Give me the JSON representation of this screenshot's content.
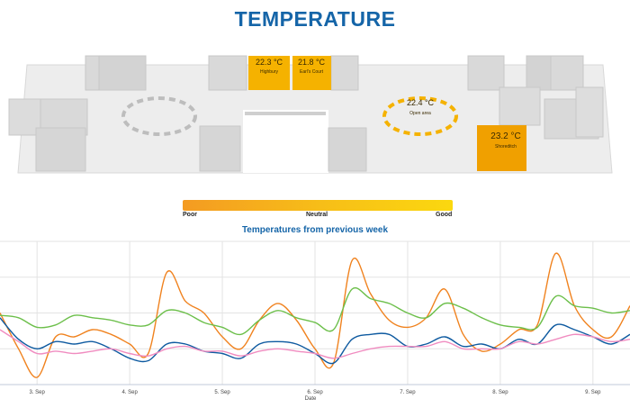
{
  "page": {
    "title": "TEMPERATURE"
  },
  "rooms": [
    {
      "temp": "22.3 °C",
      "name": "Highbury",
      "color": "#f5b200"
    },
    {
      "temp": "21.8 °C",
      "name": "Earl's Court",
      "color": "#f5b200"
    },
    {
      "temp": "22.4 °C",
      "name": "Open area",
      "color": "#f5b200"
    },
    {
      "temp": "23.2 °C",
      "name": "Shoreditch",
      "color": "#f0a000"
    }
  ],
  "legend": {
    "poor": "Poor",
    "neutral": "Neutral",
    "good": "Good"
  },
  "chart_data": {
    "type": "line",
    "title": "Temperatures from previous week",
    "xlabel": "Date",
    "ylabel": "",
    "grid": true,
    "categories": [
      "3. Sep",
      "4. Sep",
      "5. Sep",
      "6. Sep",
      "7. Sep",
      "8. Sep",
      "9. Sep"
    ],
    "x": [
      2.6,
      2.8,
      3.0,
      3.2,
      3.4,
      3.6,
      3.8,
      4.0,
      4.2,
      4.4,
      4.6,
      4.8,
      5.0,
      5.2,
      5.4,
      5.6,
      5.8,
      6.0,
      6.2,
      6.4,
      6.6,
      6.8,
      7.0,
      7.2,
      7.4,
      7.6,
      7.8,
      8.0,
      8.2,
      8.4,
      8.6,
      8.8,
      9.0,
      9.2,
      9.4
    ],
    "ylim": [
      19.5,
      25.5
    ],
    "series": [
      {
        "color": "#f0821e",
        "values": [
          22.5,
          21.0,
          19.8,
          21.5,
          21.5,
          21.8,
          21.6,
          21.2,
          20.8,
          24.2,
          23.0,
          22.5,
          21.5,
          21.0,
          22.2,
          22.9,
          22.2,
          21.0,
          20.4,
          24.7,
          23.3,
          22.2,
          21.9,
          22.3,
          23.5,
          21.6,
          20.9,
          21.2,
          21.8,
          22.0,
          25.0,
          22.8,
          21.8,
          21.5,
          22.8
        ]
      },
      {
        "color": "#6cbf4a",
        "values": [
          22.4,
          22.3,
          21.9,
          22.0,
          22.4,
          22.3,
          22.2,
          22.0,
          22.0,
          22.6,
          22.5,
          22.1,
          21.9,
          21.6,
          22.2,
          22.6,
          22.3,
          22.1,
          21.8,
          23.5,
          23.1,
          22.9,
          22.5,
          22.3,
          22.9,
          22.7,
          22.3,
          22.0,
          21.9,
          21.9,
          23.2,
          22.8,
          22.7,
          22.5,
          22.6
        ]
      },
      {
        "color": "#0e5aa0",
        "values": [
          22.3,
          21.4,
          21.0,
          21.3,
          21.2,
          21.3,
          21.0,
          20.6,
          20.5,
          21.2,
          21.2,
          20.9,
          20.8,
          20.6,
          21.2,
          21.3,
          21.2,
          20.8,
          20.4,
          21.4,
          21.6,
          21.6,
          21.1,
          21.2,
          21.5,
          21.1,
          21.2,
          21.0,
          21.4,
          21.2,
          22.0,
          21.8,
          21.5,
          21.2,
          21.6
        ]
      },
      {
        "color": "#f08cc0",
        "values": [
          21.8,
          21.3,
          20.8,
          20.9,
          20.8,
          20.9,
          21.0,
          20.8,
          20.7,
          21.0,
          21.1,
          20.9,
          20.9,
          20.7,
          20.9,
          21.0,
          20.9,
          20.8,
          20.6,
          20.8,
          21.0,
          21.1,
          21.1,
          21.1,
          21.3,
          21.0,
          21.0,
          21.0,
          21.3,
          21.2,
          21.4,
          21.6,
          21.5,
          21.3,
          21.4
        ]
      }
    ]
  }
}
